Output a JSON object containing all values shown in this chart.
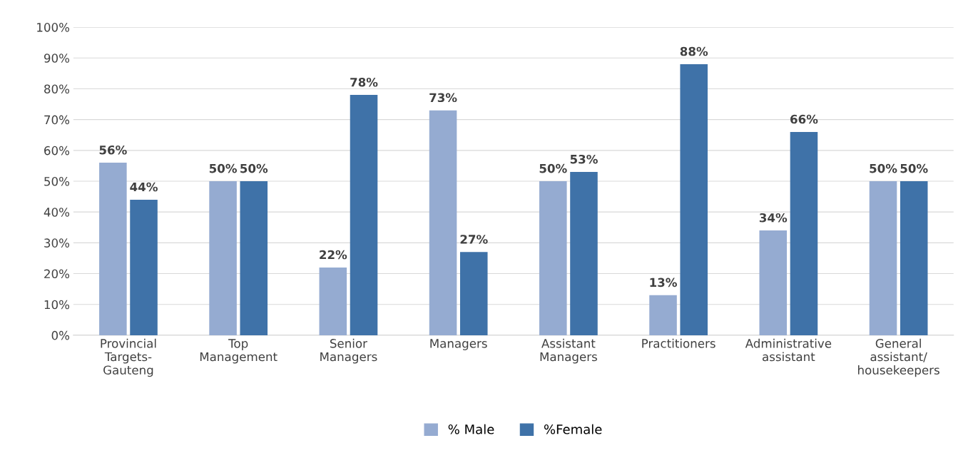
{
  "chart_data": {
    "type": "bar",
    "categories": [
      "Provincial\nTargets-\nGauteng",
      "Top\nManagement",
      "Senior\nManagers",
      "Managers",
      "Assistant\nManagers",
      "Practitioners",
      "Administrative\nassistant",
      "General\nassistant/\nhousekeepers"
    ],
    "series": [
      {
        "name": "% Male",
        "color": "#95abd1",
        "values": [
          56,
          50,
          22,
          73,
          50,
          13,
          34,
          50
        ],
        "value_labels": [
          "56%",
          "50%",
          "22%",
          "73%",
          "50%",
          "13%",
          "34%",
          "50%"
        ]
      },
      {
        "name": "%Female",
        "color": "#3f72a8",
        "values": [
          44,
          50,
          78,
          27,
          53,
          88,
          66,
          50
        ],
        "value_labels": [
          "44%",
          "50%",
          "78%",
          "27%",
          "53%",
          "88%",
          "66%",
          "50%"
        ]
      }
    ],
    "ylim": [
      0,
      100
    ],
    "yticks": [
      {
        "value": 0,
        "label": "0%"
      },
      {
        "value": 10,
        "label": "10%"
      },
      {
        "value": 20,
        "label": "20%"
      },
      {
        "value": 30,
        "label": "30%"
      },
      {
        "value": 40,
        "label": "40%"
      },
      {
        "value": 50,
        "label": "50%"
      },
      {
        "value": 60,
        "label": "60%"
      },
      {
        "value": 70,
        "label": "70%"
      },
      {
        "value": 80,
        "label": "80%"
      },
      {
        "value": 90,
        "label": "90%"
      },
      {
        "value": 100,
        "label": "100%"
      }
    ],
    "grid": "y",
    "legend": "bottom"
  }
}
